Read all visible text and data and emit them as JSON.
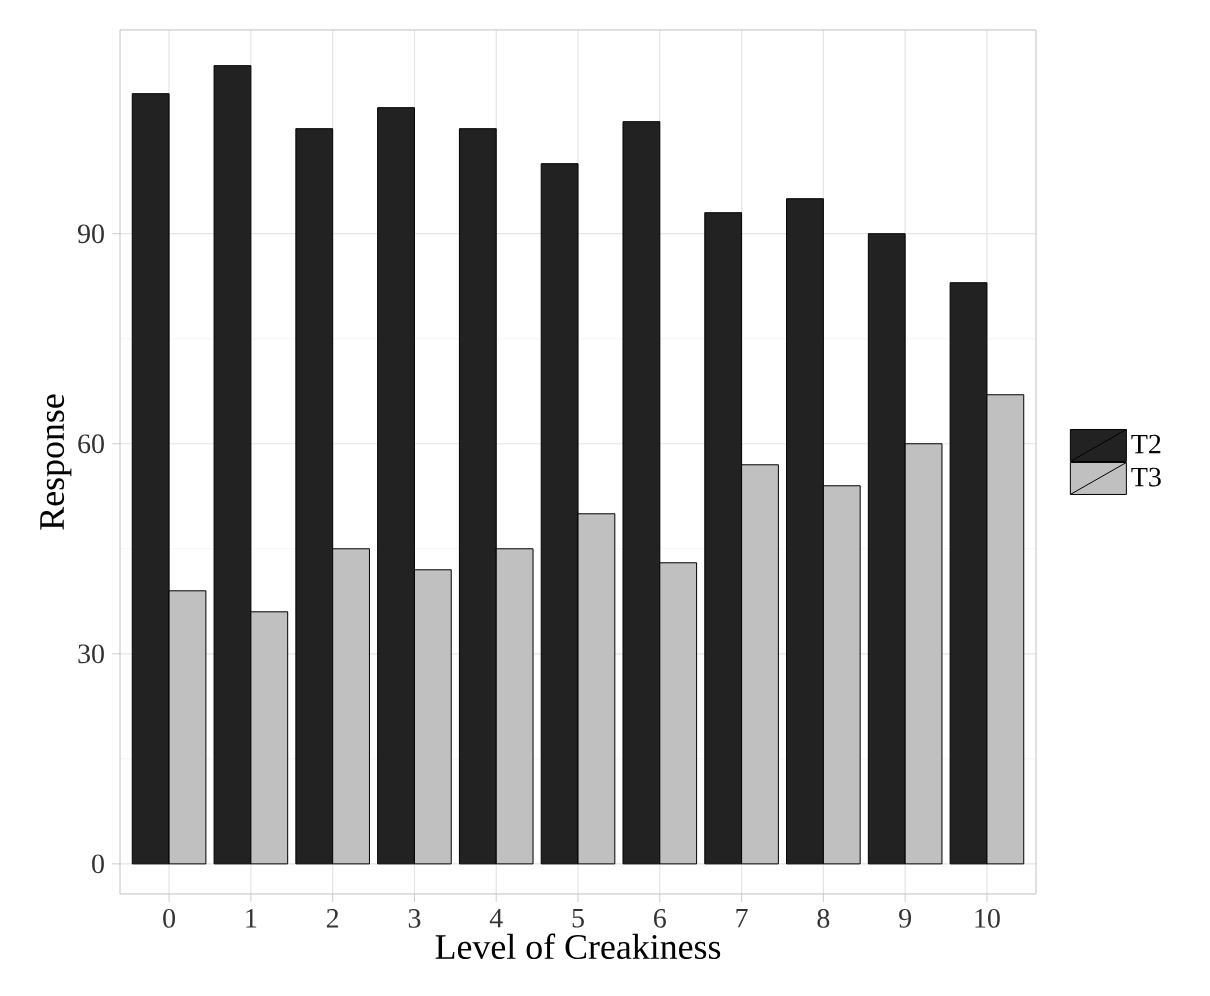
{
  "chart_data": {
    "type": "bar",
    "xlabel": "Level of Creakiness",
    "ylabel": "Response",
    "categories": [
      "0",
      "1",
      "2",
      "3",
      "4",
      "5",
      "6",
      "7",
      "8",
      "9",
      "10"
    ],
    "series": [
      {
        "name": "T2",
        "color": "#222222",
        "values": [
          110,
          114,
          105,
          108,
          105,
          100,
          106,
          93,
          95,
          90,
          83
        ]
      },
      {
        "name": "T3",
        "color": "#c0c0c0",
        "values": [
          39,
          36,
          45,
          42,
          45,
          50,
          43,
          57,
          54,
          60,
          67
        ]
      }
    ],
    "ylim": [
      -4.3,
      119.1
    ],
    "yticks": [
      0,
      30,
      60,
      90
    ],
    "grid": true,
    "legend": "right"
  }
}
